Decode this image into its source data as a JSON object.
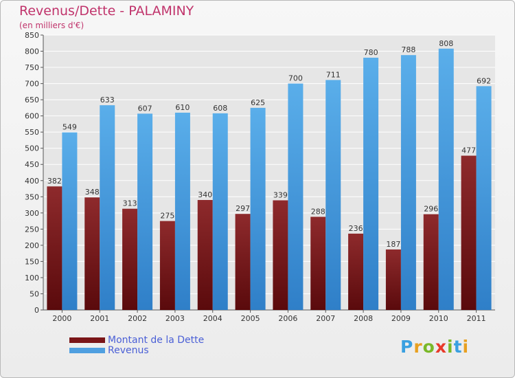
{
  "chart_data": {
    "type": "bar",
    "title": "Revenus/Dette - PALAMINY",
    "subtitle": "(en milliers d'€)",
    "categories": [
      "2000",
      "2001",
      "2002",
      "2003",
      "2004",
      "2005",
      "2006",
      "2007",
      "2008",
      "2009",
      "2010",
      "2011"
    ],
    "series": [
      {
        "name": "Montant de la Dette",
        "color": "#7a1517",
        "values": [
          382,
          348,
          313,
          275,
          340,
          297,
          339,
          288,
          236,
          187,
          296,
          477
        ]
      },
      {
        "name": "Revenus",
        "color": "#4f9fe0",
        "values": [
          549,
          633,
          607,
          610,
          608,
          625,
          700,
          711,
          780,
          788,
          808,
          692
        ]
      }
    ],
    "ylim": [
      0,
      850
    ],
    "yticks": [
      0,
      50,
      100,
      150,
      200,
      250,
      300,
      350,
      400,
      450,
      500,
      550,
      600,
      650,
      700,
      750,
      800,
      850
    ],
    "grid": true,
    "legend_position": "bottom-left"
  },
  "logo": {
    "letters": [
      "P",
      "r",
      "o",
      "x",
      "i",
      "t",
      "i"
    ],
    "colors": [
      "#3aa0e0",
      "#e8a020",
      "#7ab828",
      "#e83a2a",
      "#7ab828",
      "#3aa0e0",
      "#e8a020"
    ]
  }
}
